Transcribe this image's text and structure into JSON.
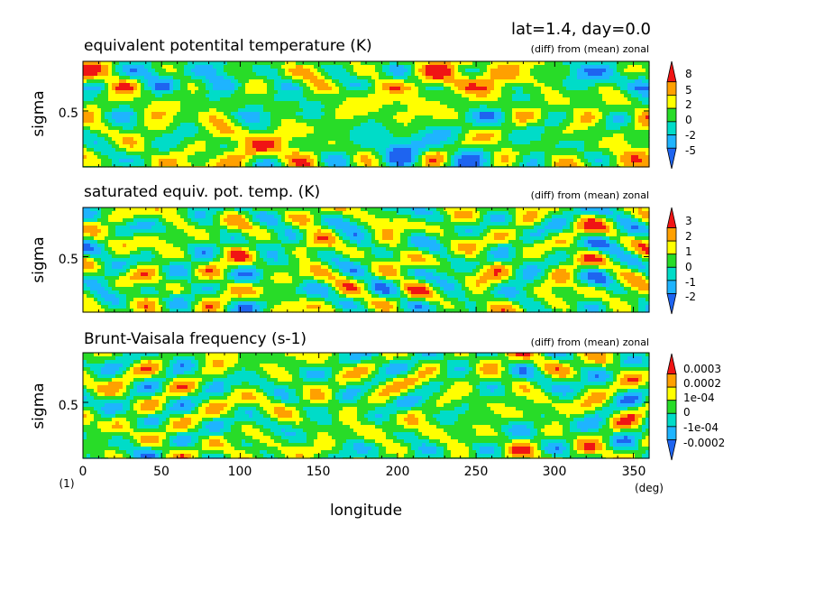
{
  "header": "lat=1.4, day=0.0",
  "figure_number": "(1)",
  "x_unit": "(deg)",
  "colors": {
    "blue": "#1e64f0",
    "sky": "#1eb4ff",
    "cyan": "#00dcc8",
    "green": "#28dc28",
    "yellow": "#ffff00",
    "orange": "#ffa000",
    "red": "#f01414"
  },
  "chart_data": [
    {
      "type": "heatmap",
      "title": "equivalent potentital temperature (K)",
      "subtitle": "(diff) from (mean) zonal",
      "xlabel": "",
      "ylabel": "sigma",
      "xlim": [
        0,
        360
      ],
      "x_ticks": [
        "0",
        "50",
        "100",
        "150",
        "200",
        "250",
        "300",
        "350"
      ],
      "y_ticks": [
        "0.5"
      ],
      "colorbar_labels": [
        "8",
        "5",
        "2",
        "0",
        "-2",
        "-5"
      ],
      "grid": false
    },
    {
      "type": "heatmap",
      "title": "saturated equiv. pot. temp. (K)",
      "subtitle": "(diff) from (mean) zonal",
      "xlabel": "",
      "ylabel": "sigma",
      "xlim": [
        0,
        360
      ],
      "x_ticks": [
        "0",
        "50",
        "100",
        "150",
        "200",
        "250",
        "300",
        "350"
      ],
      "y_ticks": [
        "0.5"
      ],
      "colorbar_labels": [
        "3",
        "2",
        "1",
        "0",
        "-1",
        "-2"
      ],
      "grid": false
    },
    {
      "type": "heatmap",
      "title": "Brunt-Vaisala frequency (s-1)",
      "subtitle": "(diff) from (mean) zonal",
      "xlabel": "longitude",
      "ylabel": "sigma",
      "xlim": [
        0,
        360
      ],
      "x_ticks": [
        "0",
        "50",
        "100",
        "150",
        "200",
        "250",
        "300",
        "350"
      ],
      "y_ticks": [
        "0.5"
      ],
      "colorbar_labels": [
        "0.0003",
        "0.0002",
        "1e-04",
        "0",
        "-1e-04",
        "-0.0002"
      ],
      "grid": false
    }
  ]
}
